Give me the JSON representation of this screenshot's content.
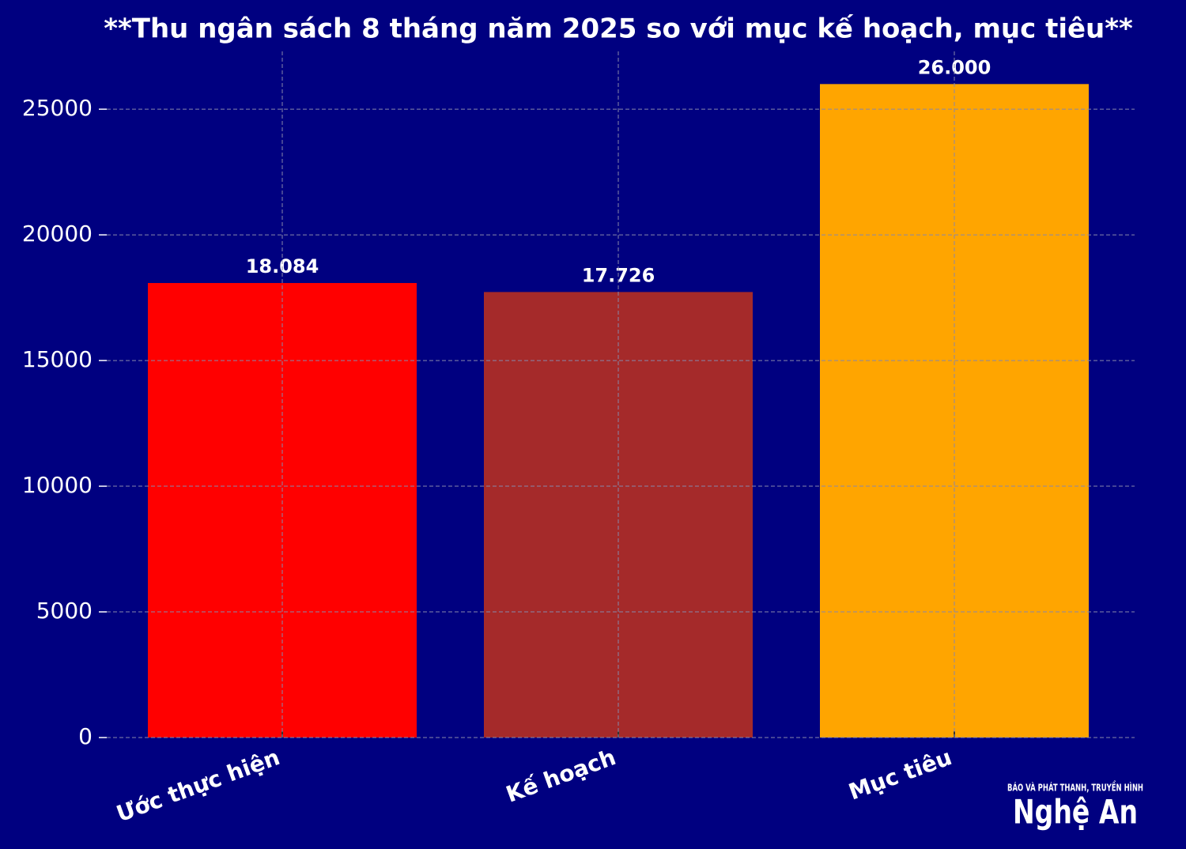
{
  "chart_data": {
    "type": "bar",
    "title": "**Thu ngân sách 8 tháng năm 2025 so với mục kế hoạch, mục tiêu**",
    "categories": [
      "Ước thực hiện",
      "Kế hoạch",
      "Mục tiêu"
    ],
    "values": [
      18084,
      17726,
      26000
    ],
    "value_labels": [
      "18.084",
      "17.726",
      "26.000"
    ],
    "colors": [
      "#ff0000",
      "#a52a2a",
      "#ffa500"
    ],
    "ylim": [
      0,
      27300
    ],
    "yticks": [
      0,
      5000,
      10000,
      15000,
      20000,
      25000
    ],
    "grid": true
  },
  "logo": {
    "tagline": "BÁO VÀ PHÁT THANH, TRUYỀN HÌNH",
    "name": "Nghệ An"
  }
}
